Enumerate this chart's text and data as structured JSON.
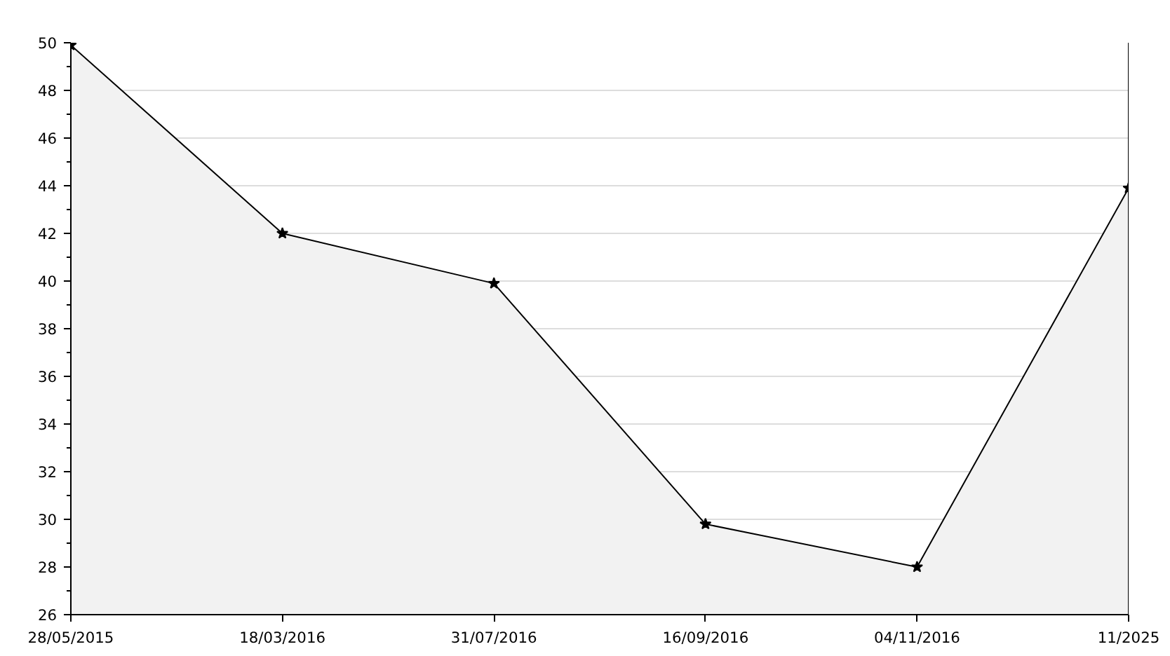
{
  "chart_data": {
    "type": "area",
    "categories": [
      "28/05/2015",
      "18/03/2016",
      "31/07/2016",
      "16/09/2016",
      "04/11/2016",
      "11/2025"
    ],
    "series": [
      {
        "color": "#000000",
        "values": [
          49.9,
          42,
          39.9,
          29.8,
          28,
          43.9
        ]
      }
    ],
    "ylim": [
      26,
      50
    ],
    "yticks": [
      26,
      {
        "value": 27,
        "label": null
      },
      28,
      {
        "value": 29,
        "label": null
      },
      30,
      {
        "value": 31,
        "label": null
      },
      32,
      {
        "value": 33,
        "label": null
      },
      34,
      {
        "value": 35,
        "label": null
      },
      36,
      {
        "value": 37,
        "label": null
      },
      38,
      {
        "value": 39,
        "label": null
      },
      40,
      {
        "value": 41,
        "label": null
      },
      42,
      {
        "value": 43,
        "label": null
      },
      44,
      {
        "value": 45,
        "label": null
      },
      46,
      {
        "value": 47,
        "label": null
      },
      48,
      {
        "value": 49,
        "label": null
      },
      50
    ],
    "grid": "y",
    "marker": "star",
    "line_style": "solid"
  }
}
